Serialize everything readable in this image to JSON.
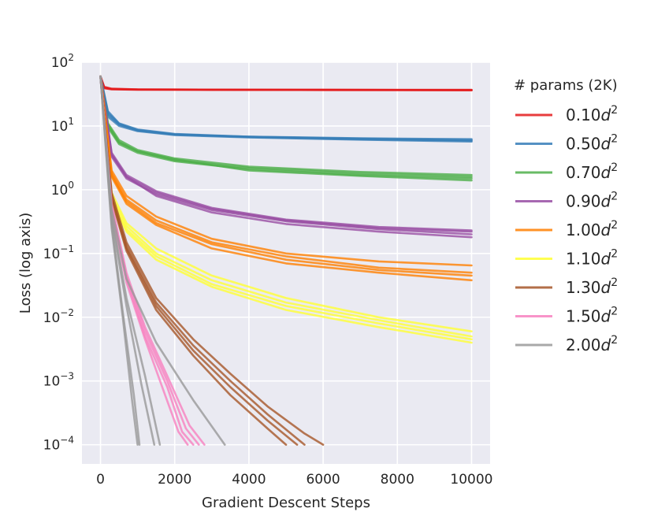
{
  "chart_data": {
    "type": "line",
    "xlabel": "Gradient Descent Steps",
    "ylabel": "Loss (log axis)",
    "yscale": "log",
    "xlim": [
      -500,
      10500
    ],
    "ylim": [
      5e-05,
      100
    ],
    "xticks": [
      0,
      2000,
      4000,
      6000,
      8000,
      10000
    ],
    "xtick_labels": [
      "0",
      "2000",
      "4000",
      "6000",
      "8000",
      "10000"
    ],
    "yticks": [
      {
        "base": "10",
        "exp": "2",
        "value": 100
      },
      {
        "base": "10",
        "exp": "1",
        "value": 10
      },
      {
        "base": "10",
        "exp": "0",
        "value": 1
      },
      {
        "base": "10",
        "exp": "−1",
        "value": 0.1
      },
      {
        "base": "10",
        "exp": "−2",
        "value": 0.01
      },
      {
        "base": "10",
        "exp": "−3",
        "value": 0.001
      },
      {
        "base": "10",
        "exp": "−4",
        "value": 0.0001
      }
    ],
    "grid": true,
    "legend": {
      "title": "# params (2K)",
      "placement": "outside-right",
      "entries": [
        {
          "coef": "0.10",
          "var": "d",
          "exp": "2"
        },
        {
          "coef": "0.50",
          "var": "d",
          "exp": "2"
        },
        {
          "coef": "0.70",
          "var": "d",
          "exp": "2"
        },
        {
          "coef": "0.90",
          "var": "d",
          "exp": "2"
        },
        {
          "coef": "1.00",
          "var": "d",
          "exp": "2"
        },
        {
          "coef": "1.10",
          "var": "d",
          "exp": "2"
        },
        {
          "coef": "1.30",
          "var": "d",
          "exp": "2"
        },
        {
          "coef": "1.50",
          "var": "d",
          "exp": "2"
        },
        {
          "coef": "2.00",
          "var": "d",
          "exp": "2"
        }
      ]
    },
    "series": [
      {
        "name": "0.10d^2",
        "color": "#e41a1c",
        "runs": [
          {
            "x": [
              0,
              100,
              300,
              1000,
              3000,
              6000,
              10000
            ],
            "y": [
              60,
              40,
              38,
              37.5,
              37,
              36.8,
              36.5
            ]
          },
          {
            "x": [
              0,
              100,
              300,
              1000,
              3000,
              6000,
              10000
            ],
            "y": [
              60,
              41,
              38.5,
              37.5,
              37.2,
              37,
              36.8
            ]
          },
          {
            "x": [
              0,
              100,
              300,
              1000,
              3000,
              6000,
              10000
            ],
            "y": [
              60,
              39,
              37.5,
              37,
              36.8,
              36.6,
              36.3
            ]
          }
        ]
      },
      {
        "name": "0.50d^2",
        "color": "#377eb8",
        "runs": [
          {
            "x": [
              0,
              200,
              500,
              1000,
              2000,
              4000,
              7000,
              10000
            ],
            "y": [
              60,
              15,
              10.5,
              8.5,
              7.3,
              6.8,
              6.4,
              6.2
            ]
          },
          {
            "x": [
              0,
              200,
              500,
              1000,
              2000,
              4000,
              7000,
              10000
            ],
            "y": [
              60,
              17,
              11,
              8.8,
              7.5,
              6.8,
              6.3,
              6.0
            ]
          },
          {
            "x": [
              0,
              200,
              500,
              1000,
              2000,
              4000,
              7000,
              10000
            ],
            "y": [
              60,
              14,
              10,
              8.3,
              7.2,
              6.6,
              6.1,
              5.7
            ]
          },
          {
            "x": [
              0,
              200,
              500,
              1000,
              2000,
              4000,
              7000,
              10000
            ],
            "y": [
              60,
              16,
              10.8,
              8.6,
              7.4,
              6.7,
              6.2,
              5.9
            ]
          }
        ]
      },
      {
        "name": "0.70d^2",
        "color": "#4daf4a",
        "runs": [
          {
            "x": [
              0,
              200,
              500,
              1000,
              2000,
              4000,
              7000,
              10000
            ],
            "y": [
              60,
              10,
              5.5,
              4.0,
              2.9,
              2.2,
              1.8,
              1.6
            ]
          },
          {
            "x": [
              0,
              200,
              500,
              1000,
              2000,
              4000,
              7000,
              10000
            ],
            "y": [
              60,
              11,
              6.0,
              4.2,
              3.1,
              2.3,
              1.9,
              1.7
            ]
          },
          {
            "x": [
              0,
              200,
              500,
              1000,
              2000,
              4000,
              7000,
              10000
            ],
            "y": [
              60,
              9.5,
              5.2,
              3.8,
              2.8,
              2.1,
              1.7,
              1.5
            ]
          },
          {
            "x": [
              0,
              200,
              500,
              1000,
              2000,
              4000,
              7000,
              10000
            ],
            "y": [
              60,
              10.5,
              5.6,
              4.0,
              3.0,
              2.0,
              1.65,
              1.4
            ]
          }
        ]
      },
      {
        "name": "0.90d^2",
        "color": "#984ea3",
        "runs": [
          {
            "x": [
              0,
              300,
              700,
              1500,
              3000,
              5000,
              7500,
              10000
            ],
            "y": [
              60,
              3.5,
              1.6,
              0.9,
              0.5,
              0.33,
              0.25,
              0.22
            ]
          },
          {
            "x": [
              0,
              300,
              700,
              1500,
              3000,
              5000,
              7500,
              10000
            ],
            "y": [
              60,
              3.8,
              1.7,
              0.95,
              0.52,
              0.34,
              0.26,
              0.23
            ]
          },
          {
            "x": [
              0,
              300,
              700,
              1500,
              3000,
              5000,
              7500,
              10000
            ],
            "y": [
              60,
              3.3,
              1.5,
              0.85,
              0.48,
              0.32,
              0.24,
              0.2
            ]
          },
          {
            "x": [
              0,
              300,
              700,
              1500,
              3000,
              5000,
              7500,
              10000
            ],
            "y": [
              60,
              3.6,
              1.6,
              0.8,
              0.44,
              0.29,
              0.22,
              0.18
            ]
          }
        ]
      },
      {
        "name": "1.00d^2",
        "color": "#ff7f00",
        "runs": [
          {
            "x": [
              0,
              300,
              700,
              1500,
              3000,
              5000,
              7500,
              10000
            ],
            "y": [
              60,
              2.0,
              0.8,
              0.38,
              0.17,
              0.1,
              0.075,
              0.065
            ]
          },
          {
            "x": [
              0,
              300,
              700,
              1500,
              3000,
              5000,
              7500,
              10000
            ],
            "y": [
              60,
              1.8,
              0.7,
              0.33,
              0.15,
              0.09,
              0.06,
              0.05
            ]
          },
          {
            "x": [
              0,
              300,
              700,
              1500,
              3000,
              5000,
              7500,
              10000
            ],
            "y": [
              60,
              1.7,
              0.65,
              0.3,
              0.14,
              0.08,
              0.055,
              0.045
            ]
          },
          {
            "x": [
              0,
              300,
              700,
              1500,
              3000,
              5000,
              7500,
              10000
            ],
            "y": [
              60,
              1.6,
              0.6,
              0.28,
              0.12,
              0.07,
              0.05,
              0.038
            ]
          }
        ]
      },
      {
        "name": "1.10d^2",
        "color": "#ffff33",
        "runs": [
          {
            "x": [
              0,
              300,
              700,
              1500,
              3000,
              5000,
              7500,
              10000
            ],
            "y": [
              60,
              0.9,
              0.3,
              0.12,
              0.045,
              0.02,
              0.01,
              0.006
            ]
          },
          {
            "x": [
              0,
              300,
              700,
              1500,
              3000,
              5000,
              7500,
              10000
            ],
            "y": [
              60,
              0.8,
              0.27,
              0.1,
              0.038,
              0.017,
              0.009,
              0.005
            ]
          },
          {
            "x": [
              0,
              300,
              700,
              1500,
              3000,
              5000,
              7500,
              10000
            ],
            "y": [
              60,
              0.7,
              0.24,
              0.09,
              0.033,
              0.015,
              0.008,
              0.0045
            ]
          },
          {
            "x": [
              0,
              300,
              700,
              1500,
              3000,
              5000,
              7500,
              10000
            ],
            "y": [
              60,
              0.65,
              0.22,
              0.08,
              0.03,
              0.013,
              0.007,
              0.004
            ]
          }
        ]
      },
      {
        "name": "1.30d^2",
        "color": "#a65628",
        "runs": [
          {
            "x": [
              0,
              300,
              700,
              1500,
              2500,
              3500,
              4500,
              5500,
              6000
            ],
            "y": [
              60,
              0.9,
              0.15,
              0.02,
              0.0045,
              0.0013,
              0.0004,
              0.00015,
              0.0001
            ]
          },
          {
            "x": [
              0,
              300,
              700,
              1500,
              2500,
              3500,
              4500,
              5500
            ],
            "y": [
              60,
              0.8,
              0.13,
              0.017,
              0.0036,
              0.001,
              0.0003,
              0.0001
            ]
          },
          {
            "x": [
              0,
              300,
              700,
              1500,
              2500,
              3500,
              4500,
              5300
            ],
            "y": [
              60,
              0.75,
              0.12,
              0.015,
              0.003,
              0.0008,
              0.00024,
              0.0001
            ]
          },
          {
            "x": [
              0,
              300,
              700,
              1500,
              2500,
              3500,
              4500,
              5000
            ],
            "y": [
              60,
              0.7,
              0.11,
              0.013,
              0.0025,
              0.0006,
              0.00018,
              0.0001
            ]
          }
        ]
      },
      {
        "name": "1.50d^2",
        "color": "#f781bf",
        "runs": [
          {
            "x": [
              0,
              300,
              700,
              1200,
              1800,
              2400,
              2800
            ],
            "y": [
              60,
              0.6,
              0.05,
              0.007,
              0.0012,
              0.0002,
              0.0001
            ]
          },
          {
            "x": [
              0,
              300,
              700,
              1200,
              1800,
              2300,
              2650
            ],
            "y": [
              60,
              0.55,
              0.045,
              0.006,
              0.001,
              0.00018,
              0.0001
            ]
          },
          {
            "x": [
              0,
              300,
              700,
              1200,
              1800,
              2200,
              2500
            ],
            "y": [
              60,
              0.5,
              0.04,
              0.005,
              0.0008,
              0.00016,
              0.0001
            ]
          },
          {
            "x": [
              0,
              300,
              700,
              1200,
              1700,
              2100,
              2350
            ],
            "y": [
              60,
              0.45,
              0.035,
              0.0045,
              0.0007,
              0.00016,
              0.0001
            ]
          }
        ]
      },
      {
        "name": "2.00d^2",
        "color": "#999999",
        "runs": [
          {
            "x": [
              0,
              300,
              700,
              1500,
              2500,
              3350
            ],
            "y": [
              60,
              0.5,
              0.04,
              0.004,
              0.0005,
              0.0001
            ]
          },
          {
            "x": [
              0,
              300,
              700,
              1200,
              1600
            ],
            "y": [
              60,
              0.4,
              0.02,
              0.0012,
              0.0001
            ]
          },
          {
            "x": [
              0,
              300,
              700,
              1100,
              1450
            ],
            "y": [
              60,
              0.35,
              0.015,
              0.0009,
              0.0001
            ]
          },
          {
            "x": [
              0,
              300,
              600,
              900,
              1050
            ],
            "y": [
              60,
              0.3,
              0.012,
              0.0006,
              0.0001
            ]
          },
          {
            "x": [
              0,
              300,
              600,
              850,
              1000
            ],
            "y": [
              60,
              0.25,
              0.01,
              0.0005,
              0.0001
            ]
          }
        ]
      }
    ]
  }
}
